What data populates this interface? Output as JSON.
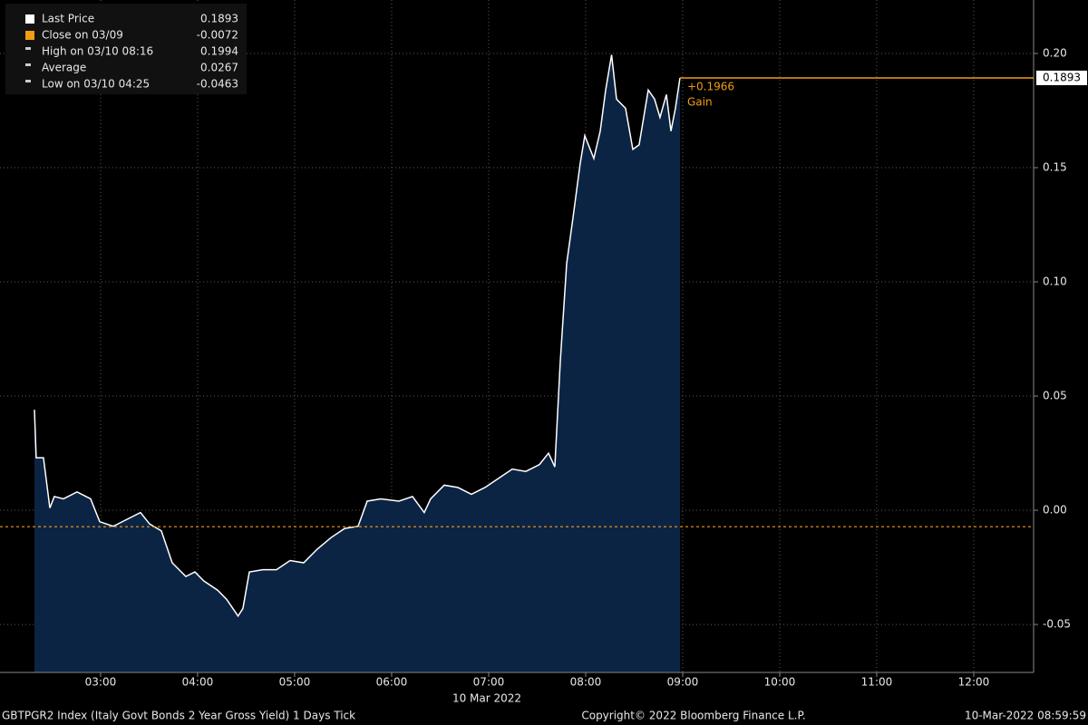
{
  "chart_data": {
    "type": "line",
    "x": [
      2.318,
      2.336,
      2.411,
      2.477,
      2.523,
      2.617,
      2.757,
      2.897,
      2.991,
      3.131,
      3.271,
      3.411,
      3.505,
      3.626,
      3.738,
      3.879,
      3.972,
      4.065,
      4.206,
      4.299,
      4.417,
      4.467,
      4.533,
      4.673,
      4.813,
      4.953,
      5.093,
      5.234,
      5.374,
      5.514,
      5.654,
      5.748,
      5.888,
      6.075,
      6.215,
      6.336,
      6.402,
      6.542,
      6.682,
      6.822,
      6.963,
      7.103,
      7.243,
      7.383,
      7.523,
      7.617,
      7.682,
      7.738,
      7.804,
      7.869,
      7.944,
      7.991,
      8.084,
      8.15,
      8.206,
      8.267,
      8.318,
      8.411,
      8.486,
      8.551,
      8.645,
      8.71,
      8.766,
      8.832,
      8.879,
      8.925,
      8.972
    ],
    "series": [
      {
        "name": "Last Price",
        "color": "#ffffff",
        "fill": "#0c2444",
        "values": [
          0.044,
          0.023,
          0.023,
          0.001,
          0.006,
          0.005,
          0.008,
          0.005,
          -0.005,
          -0.007,
          -0.004,
          -0.001,
          -0.006,
          -0.009,
          -0.023,
          -0.029,
          -0.027,
          -0.031,
          -0.035,
          -0.039,
          -0.0463,
          -0.043,
          -0.027,
          -0.026,
          -0.026,
          -0.022,
          -0.023,
          -0.017,
          -0.012,
          -0.008,
          -0.007,
          0.004,
          0.005,
          0.004,
          0.006,
          -0.001,
          0.005,
          0.011,
          0.01,
          0.007,
          0.01,
          0.014,
          0.018,
          0.017,
          0.02,
          0.025,
          0.019,
          0.065,
          0.108,
          0.128,
          0.152,
          0.164,
          0.154,
          0.166,
          0.184,
          0.1994,
          0.18,
          0.176,
          0.158,
          0.16,
          0.184,
          0.18,
          0.172,
          0.182,
          0.166,
          0.176,
          0.1893
        ]
      }
    ],
    "legend": [
      {
        "label": "Last Price",
        "value": 0.1893,
        "color": "#ffffff"
      },
      {
        "label": "Close on 03/09",
        "value": -0.0072,
        "color": "#f39c12"
      },
      {
        "label": "High on 03/10 08:16",
        "value": 0.1994,
        "color": "#cccccc"
      },
      {
        "label": "Average",
        "value": 0.0267,
        "color": "#cccccc"
      },
      {
        "label": "Low on 03/10 04:25",
        "value": -0.0463,
        "color": "#cccccc"
      }
    ],
    "reference_color": "#f39c12",
    "gain_value": "+0.1966",
    "gain_label": "Gain",
    "xlim": [
      1.963,
      12.617
    ],
    "xticks": [
      {
        "value": 3,
        "label": "03:00"
      },
      {
        "value": 4,
        "label": "04:00"
      },
      {
        "value": 5,
        "label": "05:00"
      },
      {
        "value": 6,
        "label": "06:00"
      },
      {
        "value": 7,
        "label": "07:00"
      },
      {
        "value": 8,
        "label": "08:00"
      },
      {
        "value": 9,
        "label": "09:00"
      },
      {
        "value": 10,
        "label": "10:00"
      },
      {
        "value": 11,
        "label": "11:00"
      },
      {
        "value": 12,
        "label": "12:00"
      }
    ],
    "x_label": "10 Mar 2022",
    "ylim": [
      -0.071,
      0.2234
    ],
    "yticks": [
      {
        "value": 0.2,
        "label": "0.20"
      },
      0.15,
      {
        "value": 0.1,
        "label": "0.10"
      },
      0.05,
      {
        "value": 0,
        "label": "0.00"
      },
      -0.05
    ],
    "grid": true,
    "footer": {
      "description": "GBTPGR2 Index (Italy Govt Bonds 2 Year Gross Yield) 1 Days  Tick",
      "copyright": "Copyright© 2022 Bloomberg Finance L.P.",
      "timestamp": "10-Mar-2022 08:59:59"
    }
  }
}
